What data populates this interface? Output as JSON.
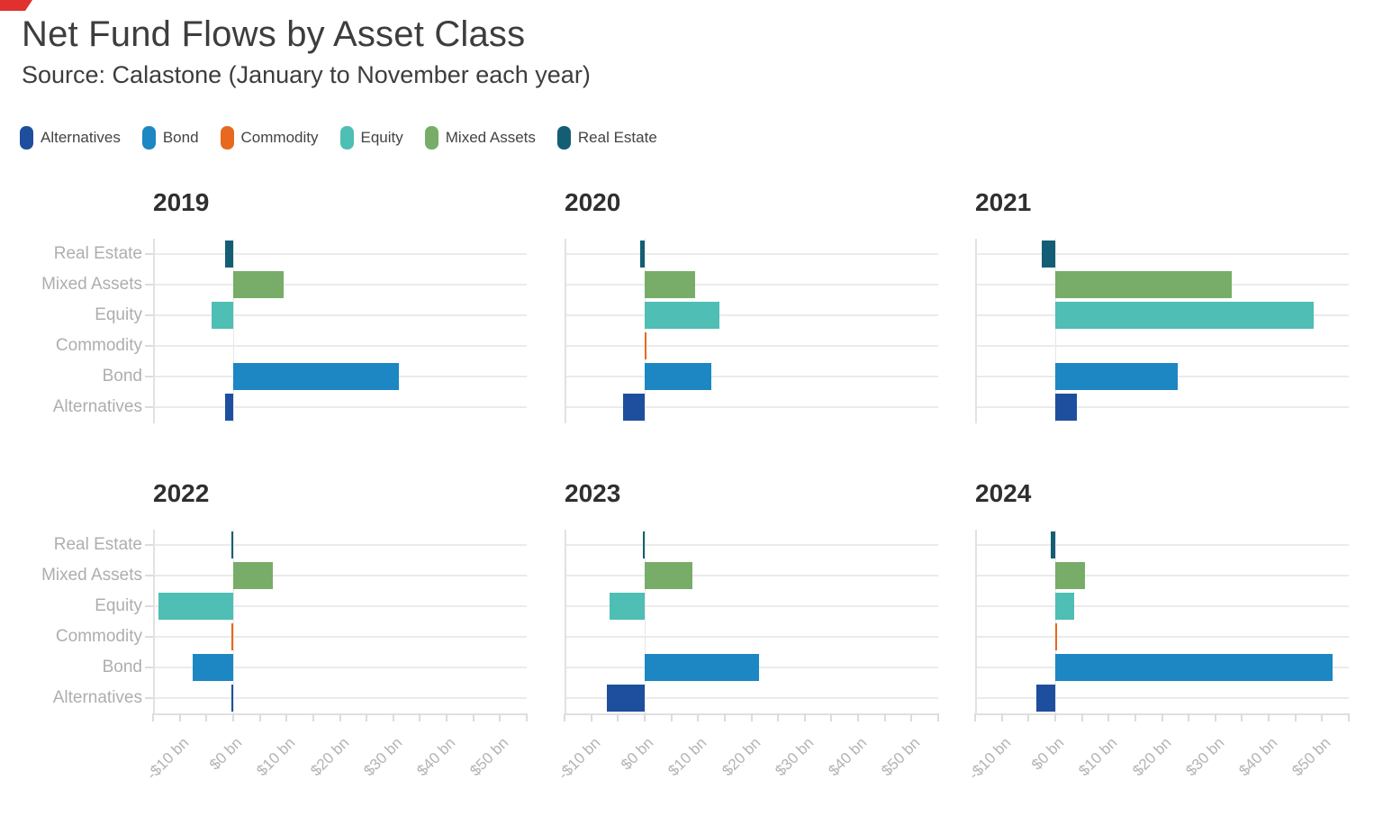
{
  "page": {
    "title": "Net Fund Flows by Asset Class",
    "subtitle": "Source: Calastone (January to November each year)"
  },
  "corner_mark": {
    "color": "#e0312e"
  },
  "legend": {
    "items": [
      {
        "label": "Alternatives",
        "color": "#1d4f9e"
      },
      {
        "label": "Bond",
        "color": "#1c87c3"
      },
      {
        "label": "Commodity",
        "color": "#e7681f"
      },
      {
        "label": "Equity",
        "color": "#4fbeb4"
      },
      {
        "label": "Mixed Assets",
        "color": "#77ad68"
      },
      {
        "label": "Real Estate",
        "color": "#135e75"
      }
    ]
  },
  "chart_data": {
    "type": "bar",
    "orientation": "horizontal",
    "title": "Net Fund Flows by Asset Class",
    "subtitle": "Source: Calastone (January to November each year)",
    "unit": "USD billions",
    "xlim": [
      -15,
      55
    ],
    "x_tick_values": [
      -10,
      0,
      10,
      20,
      30,
      40,
      50
    ],
    "x_tick_labels": [
      "-$10 bn",
      "$0 bn",
      "$10 bn",
      "$20 bn",
      "$30 bn",
      "$40 bn",
      "$50 bn"
    ],
    "x_minor_tick_step": 5,
    "grid": "horizontal",
    "legend_position": "top",
    "categories_top_to_bottom": [
      "Real Estate",
      "Mixed Assets",
      "Equity",
      "Commodity",
      "Bond",
      "Alternatives"
    ],
    "series_colors": {
      "Alternatives": "#1d4f9e",
      "Bond": "#1c87c3",
      "Commodity": "#e7681f",
      "Equity": "#4fbeb4",
      "Mixed Assets": "#77ad68",
      "Real Estate": "#135e75"
    },
    "facets": [
      {
        "year": "2019",
        "values": {
          "Real Estate": -1.5,
          "Mixed Assets": 9.5,
          "Equity": -4,
          "Commodity": 0,
          "Bond": 31,
          "Alternatives": -1.5
        }
      },
      {
        "year": "2020",
        "values": {
          "Real Estate": -0.8,
          "Mixed Assets": 9.5,
          "Equity": 14,
          "Commodity": 0.2,
          "Bond": 12.5,
          "Alternatives": -4
        }
      },
      {
        "year": "2021",
        "values": {
          "Real Estate": -2.5,
          "Mixed Assets": 33,
          "Equity": 48.5,
          "Commodity": 0,
          "Bond": 23,
          "Alternatives": 4
        }
      },
      {
        "year": "2022",
        "values": {
          "Real Estate": -0.4,
          "Mixed Assets": 7.5,
          "Equity": -14,
          "Commodity": -0.2,
          "Bond": -7.5,
          "Alternatives": -0.4
        }
      },
      {
        "year": "2023",
        "values": {
          "Real Estate": -0.4,
          "Mixed Assets": 9,
          "Equity": -6.5,
          "Commodity": 0,
          "Bond": 21.5,
          "Alternatives": -7
        }
      },
      {
        "year": "2024",
        "values": {
          "Real Estate": -0.8,
          "Mixed Assets": 5.5,
          "Equity": 3.5,
          "Commodity": 0.2,
          "Bond": 52,
          "Alternatives": -3.5
        }
      }
    ]
  }
}
